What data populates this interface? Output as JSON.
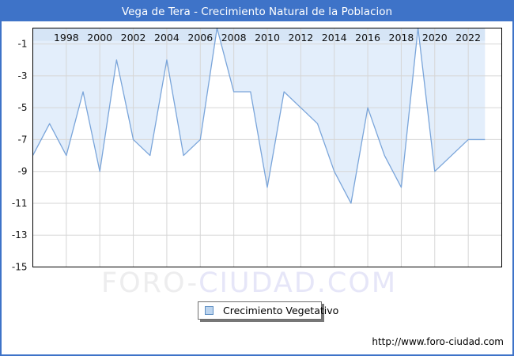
{
  "window": {
    "title": "Vega de Tera - Crecimiento Natural de la Poblacion"
  },
  "legend": {
    "label": "Crecimiento Vegetativo"
  },
  "watermark": {
    "part1": "FORO-",
    "part2": "CIUDAD.COM"
  },
  "footer": {
    "url": "http://www.foro-ciudad.com"
  },
  "colors": {
    "titlebar_blue": "#3e73c8",
    "area_fill": "#e3eefb",
    "axis_band": "#d6e5f6",
    "line": "#7aa5da",
    "grid": "#d6d6d6",
    "plot_border": "#000000"
  },
  "chart_data": {
    "type": "area",
    "title": "Vega de Tera - Crecimiento Natural de la Poblacion",
    "xlabel": "",
    "ylabel": "",
    "xlim": [
      1996,
      2024
    ],
    "ylim": [
      -15,
      0
    ],
    "grid": true,
    "legend_position": "bottom-center",
    "x": [
      1996,
      1997,
      1998,
      1999,
      2000,
      2001,
      2002,
      2003,
      2004,
      2005,
      2006,
      2007,
      2008,
      2009,
      2010,
      2011,
      2012,
      2013,
      2014,
      2015,
      2016,
      2017,
      2018,
      2019,
      2020,
      2021,
      2022,
      2023
    ],
    "series": [
      {
        "name": "Crecimiento Vegetativo",
        "values": [
          -8,
          -6,
          -8,
          -4,
          -9,
          -2,
          -7,
          -8,
          -2,
          -8,
          -7,
          0,
          -4,
          -4,
          -10,
          -4,
          -5,
          -6,
          -9,
          -11,
          -5,
          -8,
          -10,
          0,
          -9,
          -8,
          -7,
          -7
        ]
      }
    ],
    "xticks": [
      1998,
      2000,
      2002,
      2004,
      2006,
      2008,
      2010,
      2012,
      2014,
      2016,
      2018,
      2020,
      2022
    ],
    "xtick_labels": [
      "1998",
      "2000",
      "2002",
      "2004",
      "2006",
      "2008",
      "2010",
      "2012",
      "2014",
      "2016",
      "2018",
      "2020",
      "2022"
    ],
    "yticks": [
      -1,
      -3,
      -5,
      -7,
      -9,
      -11,
      -13,
      -15
    ],
    "ytick_labels": [
      "-1",
      "-3",
      "-5",
      "-7",
      "-9",
      "-11",
      "-13",
      "-15"
    ]
  }
}
